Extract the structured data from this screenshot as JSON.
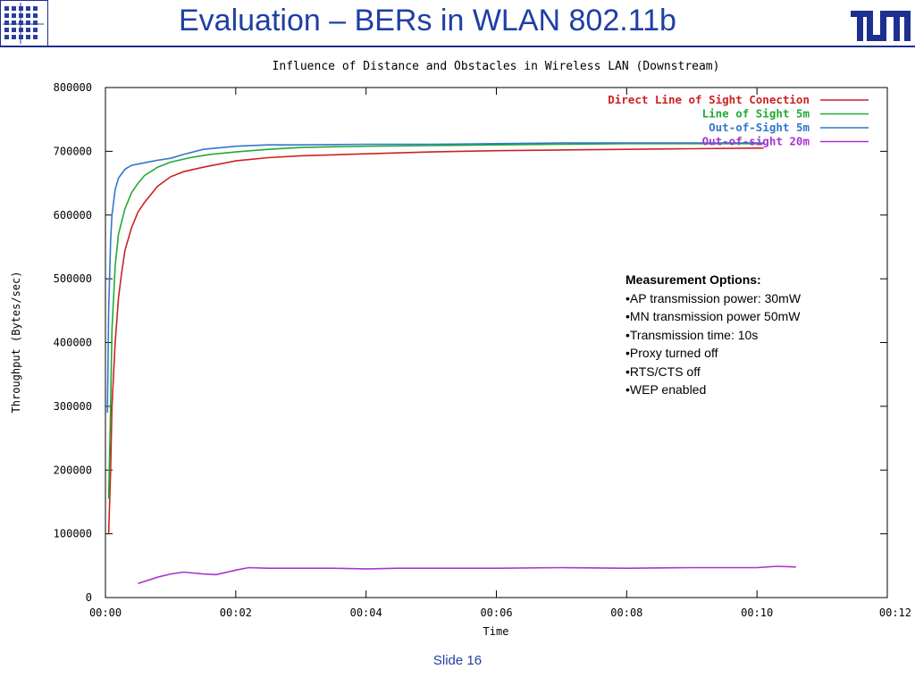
{
  "slide": {
    "title": "Evaluation – BERs in WLAN 802.11b",
    "number_label": "Slide 16",
    "brand_logo_text": "TUM"
  },
  "colors": {
    "title_blue": "#1f3fa4",
    "rule_blue": "#1d2f8f"
  },
  "measurement_options": {
    "heading": "Measurement Options:",
    "items": [
      "•AP transmission power: 30mW",
      "•MN transmission power 50mW",
      "•Transmission time: 10s",
      "•Proxy turned off",
      "•RTS/CTS off",
      "•WEP enabled"
    ]
  },
  "chart_data": {
    "type": "line",
    "title": "Influence of Distance and Obstacles in Wireless LAN (Downstream)",
    "xlabel": "Time",
    "ylabel": "Throughput (Bytes/sec)",
    "xlim": [
      0,
      12
    ],
    "ylim": [
      0,
      800000
    ],
    "x_unit": "seconds",
    "x_ticks": [
      0,
      2,
      4,
      6,
      8,
      10,
      12
    ],
    "x_tick_labels": [
      "00:00",
      "00:02",
      "00:04",
      "00:06",
      "00:08",
      "00:10",
      "00:12"
    ],
    "y_ticks": [
      0,
      100000,
      200000,
      300000,
      400000,
      500000,
      600000,
      700000,
      800000
    ],
    "y_tick_labels": [
      "0",
      "100000",
      "200000",
      "300000",
      "400000",
      "500000",
      "600000",
      "700000",
      "800000"
    ],
    "legend_position": "top-right",
    "grid": false,
    "series": [
      {
        "name": "Direct Line of Sight Conection",
        "color": "#cc2222",
        "x": [
          0.05,
          0.08,
          0.1,
          0.15,
          0.2,
          0.25,
          0.3,
          0.4,
          0.5,
          0.6,
          0.8,
          1.0,
          1.2,
          1.5,
          2.0,
          2.5,
          3.0,
          4.0,
          5.0,
          6.0,
          7.0,
          8.0,
          9.0,
          10.0,
          10.1
        ],
        "y": [
          100000,
          200000,
          300000,
          400000,
          470000,
          510000,
          545000,
          580000,
          605000,
          620000,
          645000,
          660000,
          668000,
          675000,
          685000,
          690000,
          693000,
          696000,
          699000,
          701000,
          702000,
          703000,
          704000,
          705000,
          705000
        ]
      },
      {
        "name": "Line of Sight 5m",
        "color": "#22aa33",
        "x": [
          0.05,
          0.08,
          0.1,
          0.15,
          0.2,
          0.3,
          0.4,
          0.5,
          0.6,
          0.8,
          1.0,
          1.3,
          1.6,
          2.0,
          2.5,
          3.0,
          4.0,
          5.0,
          6.0,
          7.0,
          8.0,
          9.0,
          10.0,
          10.1
        ],
        "y": [
          155000,
          300000,
          420000,
          520000,
          570000,
          610000,
          635000,
          650000,
          662000,
          675000,
          683000,
          690000,
          695000,
          699000,
          703000,
          706000,
          708000,
          709000,
          710000,
          711000,
          712000,
          712000,
          712000,
          712000
        ]
      },
      {
        "name": "Out-of-Sight 5m",
        "color": "#3377cc",
        "x": [
          0.03,
          0.05,
          0.08,
          0.1,
          0.15,
          0.2,
          0.3,
          0.4,
          0.5,
          0.6,
          0.7,
          0.8,
          1.0,
          1.2,
          1.5,
          2.0,
          2.5,
          3.0,
          4.0,
          5.0,
          6.0,
          7.0,
          8.0,
          9.0,
          10.0,
          10.1
        ],
        "y": [
          290000,
          450000,
          560000,
          600000,
          640000,
          658000,
          672000,
          678000,
          680000,
          682000,
          684000,
          686000,
          689000,
          695000,
          703000,
          708000,
          710000,
          710000,
          711000,
          711000,
          712000,
          713000,
          713000,
          713000,
          713000,
          713000
        ]
      },
      {
        "name": "Out-of-sight 20m",
        "color": "#aa33cc",
        "x": [
          0.5,
          0.8,
          1.0,
          1.2,
          1.5,
          1.7,
          2.0,
          2.2,
          2.5,
          3.0,
          3.5,
          4.0,
          4.5,
          5.0,
          6.0,
          7.0,
          8.0,
          9.0,
          10.0,
          10.3,
          10.6
        ],
        "y": [
          22000,
          32000,
          37000,
          40000,
          37000,
          36000,
          43000,
          47000,
          46000,
          46000,
          46000,
          45000,
          46000,
          46000,
          46000,
          47000,
          46000,
          47000,
          47000,
          49000,
          48000
        ]
      }
    ]
  }
}
